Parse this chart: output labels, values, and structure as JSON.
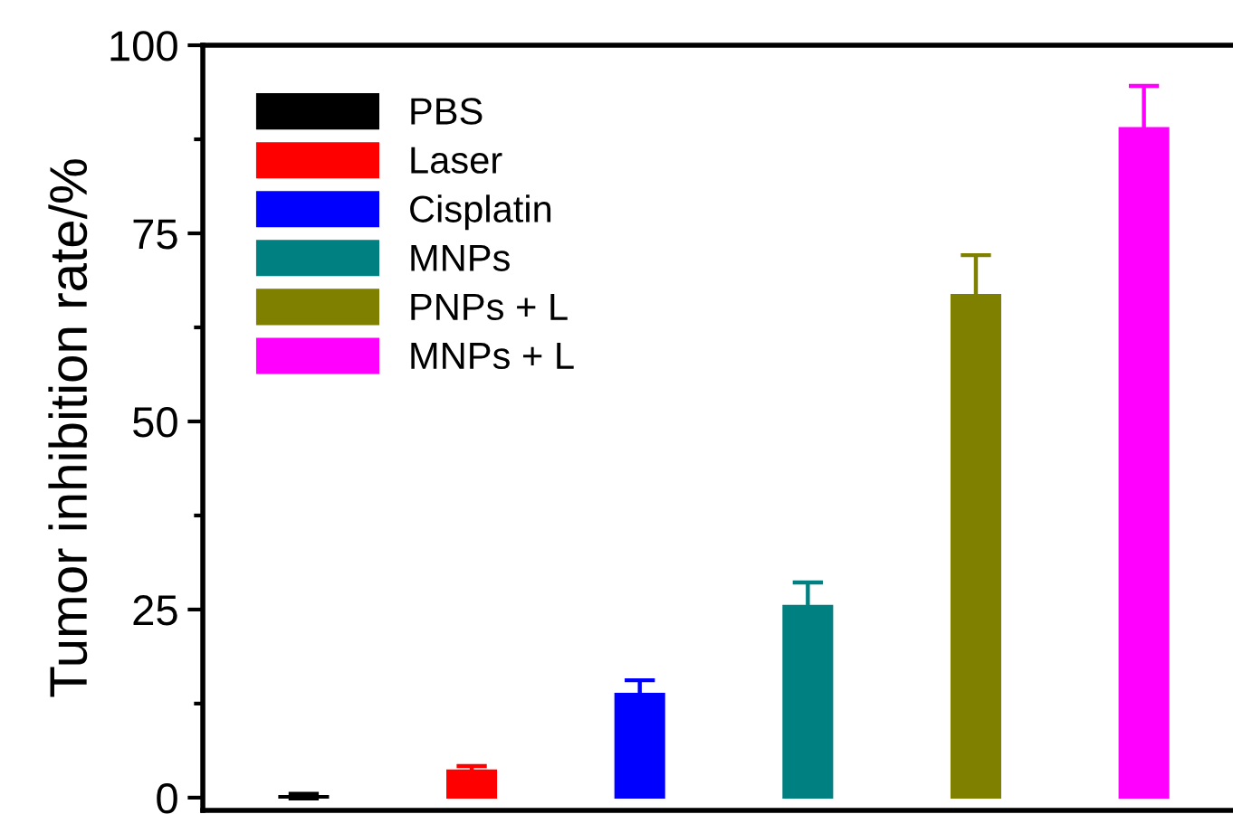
{
  "chart_data": {
    "type": "bar",
    "ylabel": "Tumor inhibition rate/%",
    "categories": [
      null,
      null,
      null,
      null,
      null,
      null
    ],
    "series": [
      {
        "name": "PBS",
        "color": "#000000",
        "values": [
          0.2,
          null,
          null,
          null,
          null,
          null
        ],
        "errors": [
          0.3,
          null,
          null,
          null,
          null,
          null
        ]
      },
      {
        "name": "Laser",
        "color": "#ff0000",
        "values": [
          null,
          3.6,
          null,
          null,
          null,
          null
        ],
        "errors": [
          null,
          0.6,
          null,
          null,
          null,
          null
        ]
      },
      {
        "name": "Cisplatin",
        "color": "#0000ff",
        "values": [
          null,
          null,
          13.8,
          null,
          null,
          null
        ],
        "errors": [
          null,
          null,
          1.8,
          null,
          null,
          null
        ]
      },
      {
        "name": "MNPs",
        "color": "#008080",
        "values": [
          null,
          null,
          null,
          25.5,
          null,
          null
        ],
        "errors": [
          null,
          null,
          null,
          3.1,
          null,
          null
        ]
      },
      {
        "name": "PNPs + L",
        "color": "#808000",
        "values": [
          null,
          null,
          null,
          null,
          66.8,
          null
        ],
        "errors": [
          null,
          null,
          null,
          null,
          5.3,
          null
        ]
      },
      {
        "name": "MNPs + L",
        "color": "#ff00ff",
        "values": [
          null,
          null,
          null,
          null,
          null,
          89.0
        ],
        "errors": [
          null,
          null,
          null,
          null,
          null,
          5.6
        ]
      }
    ],
    "ylim": [
      -1.7,
      100
    ],
    "yticks": [
      0,
      {
        "value": 12.5,
        "label": null
      },
      25,
      {
        "value": 37.5,
        "label": null
      },
      50,
      {
        "value": 62.5,
        "label": null
      },
      75,
      {
        "value": 87.5,
        "label": null
      },
      100
    ],
    "legend": "top left",
    "grid": false,
    "tick_labels": "y"
  }
}
